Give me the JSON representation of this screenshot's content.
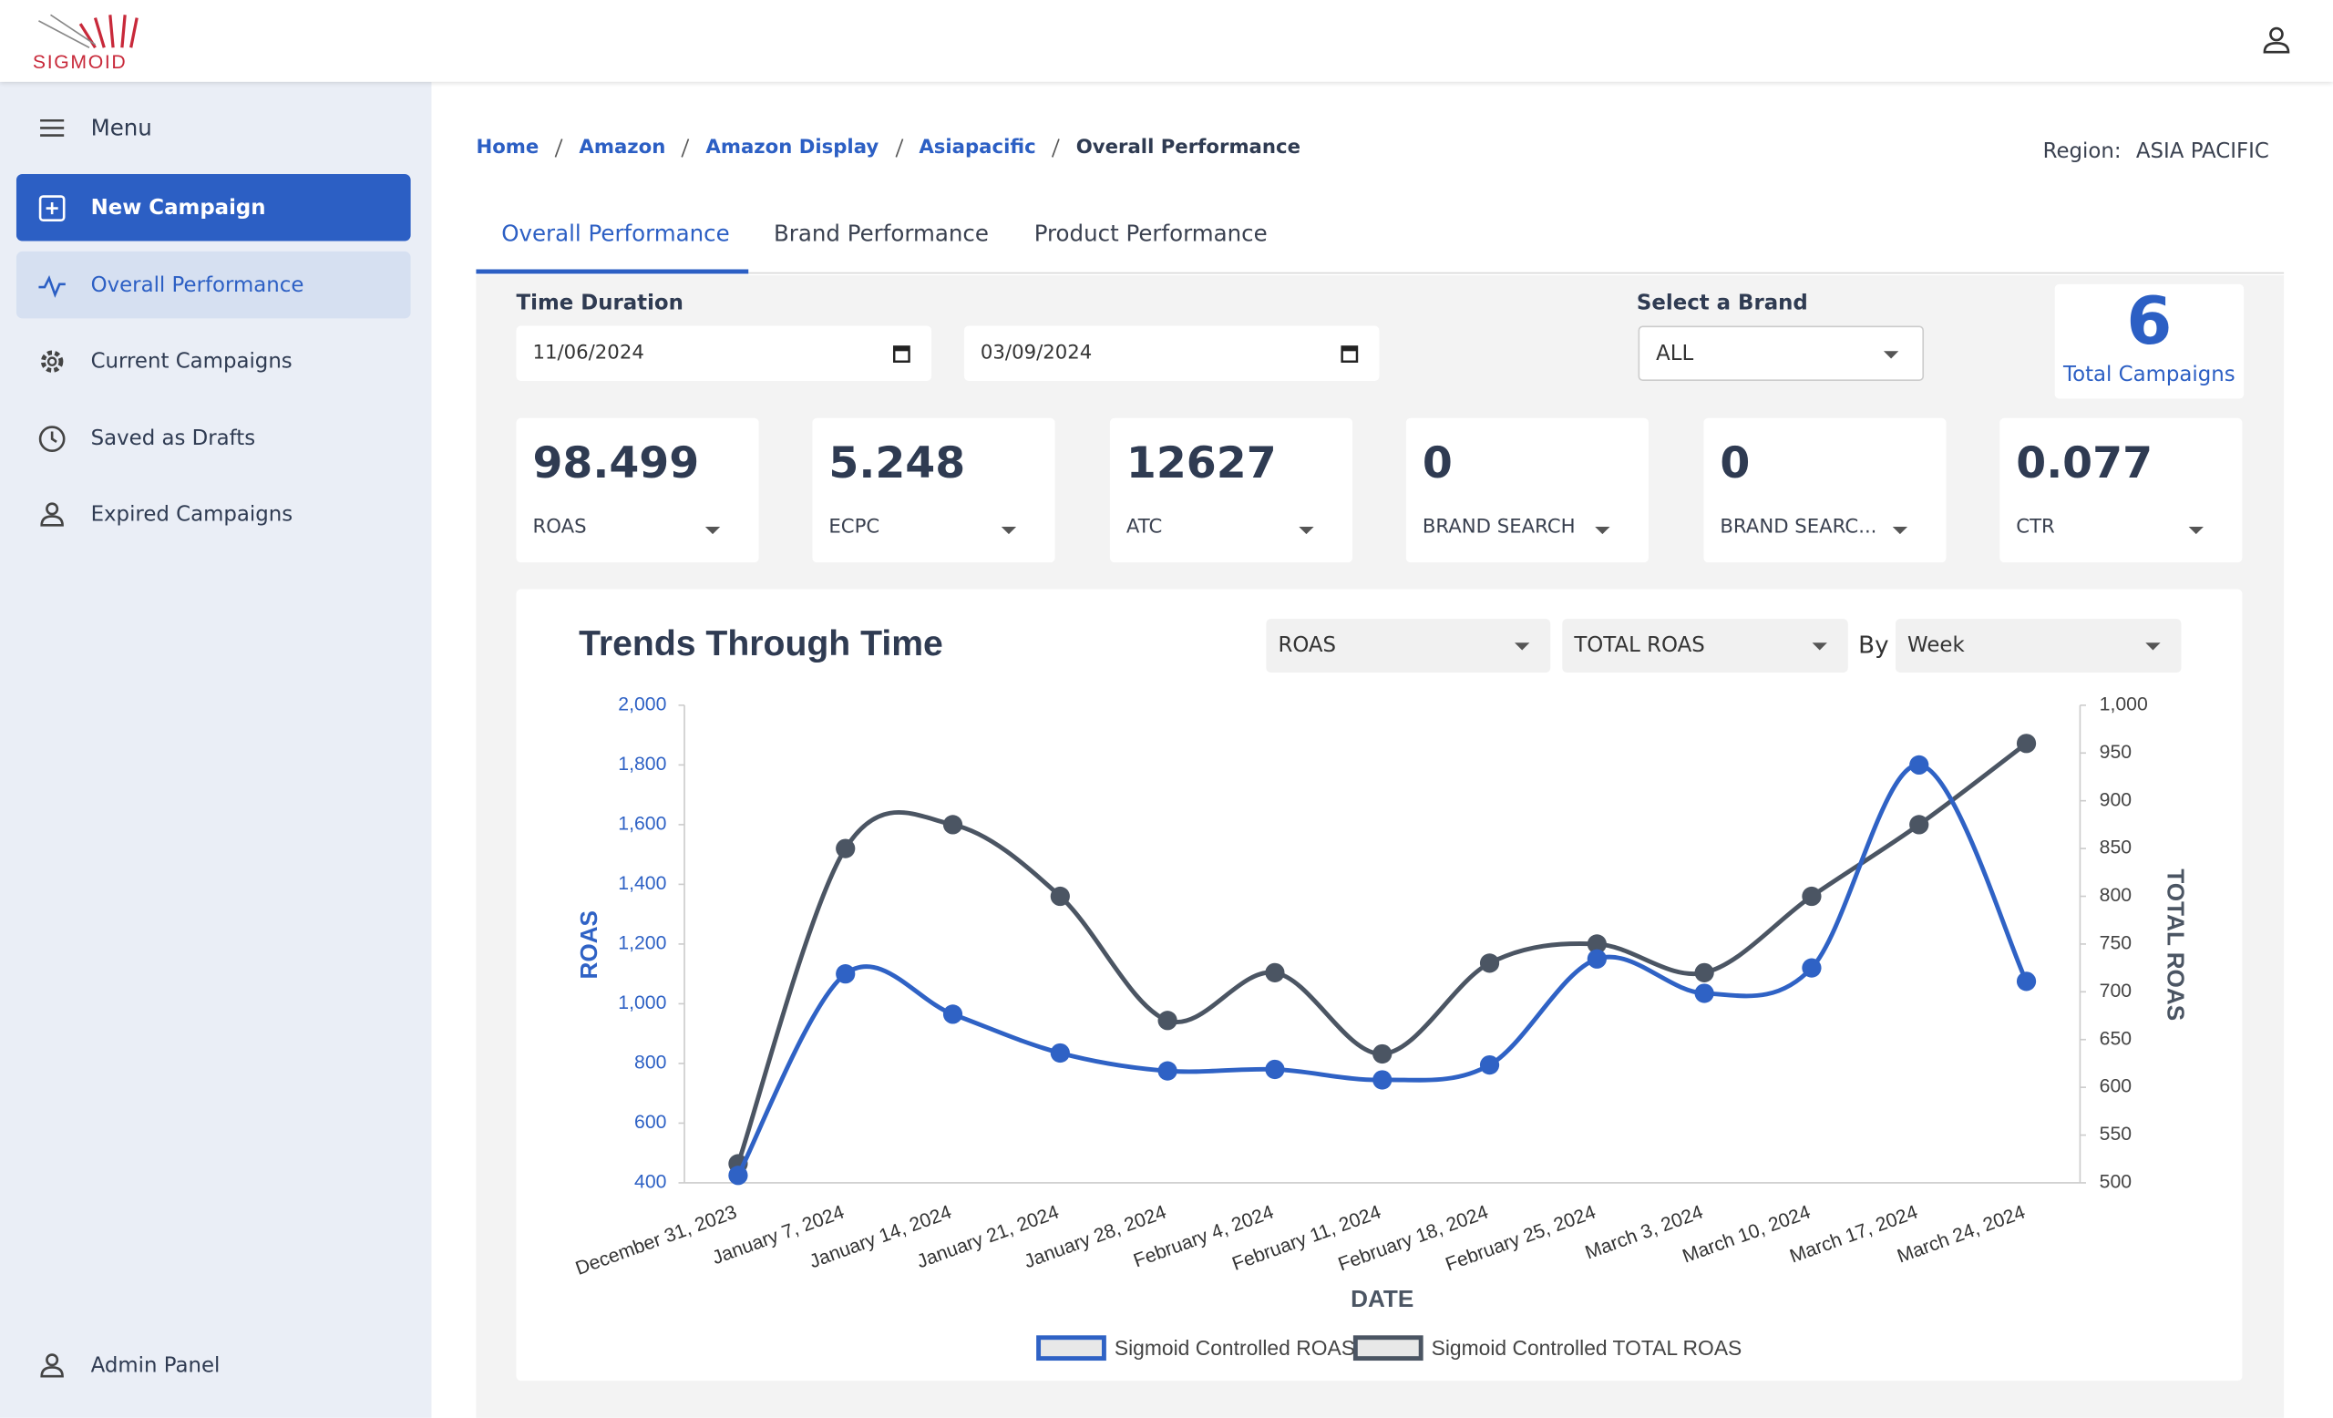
{
  "header": {
    "logo": "SIGMOID"
  },
  "sidebar": {
    "menu": "Menu",
    "items": [
      "New Campaign",
      "Overall Performance",
      "Current Campaigns",
      "Saved as Drafts",
      "Expired Campaigns"
    ],
    "footer": "Admin Panel"
  },
  "breadcrumb": [
    "Home",
    "Amazon",
    "Amazon Display",
    "Asiapacific",
    "Overall Performance"
  ],
  "region": {
    "label": "Region:",
    "value": "ASIA PACIFIC"
  },
  "tabs": [
    "Overall Performance",
    "Brand Performance",
    "Product Performance"
  ],
  "filters": {
    "time_label": "Time Duration",
    "start": "11/06/2024",
    "end": "03/09/2024",
    "brand_label": "Select a Brand",
    "brand": "ALL"
  },
  "total_campaigns": {
    "value": 6,
    "label": "Total Campaigns"
  },
  "kpis": [
    {
      "value": 98.499,
      "label": "ROAS"
    },
    {
      "value": 5.248,
      "label": "ECPC"
    },
    {
      "value": 12627,
      "label": "ATC"
    },
    {
      "value": 0,
      "label": "BRAND SEARCH"
    },
    {
      "value": 0,
      "label": "BRAND SEARC..."
    },
    {
      "value": 0.077,
      "label": "CTR"
    }
  ],
  "chart_controls": {
    "metric": "ROAS",
    "comparison": "TOTAL ROAS",
    "by": "By",
    "period": "Week"
  },
  "chart_data": {
    "type": "line",
    "title": "Trends Through Time",
    "x_label": "DATE",
    "y_label": "ROAS",
    "y2_label": "TOTAL ROAS",
    "categories": [
      "December 31, 2023",
      "January 7, 2024",
      "January 14, 2024",
      "January 21, 2024",
      "January 28, 2024",
      "February 4, 2024",
      "February 11, 2024",
      "February 18, 2024",
      "February 25, 2024",
      "March 3, 2024",
      "March 10, 2024",
      "March 17, 2024",
      "March 24, 2024"
    ],
    "series": [
      {
        "name": "Sigmoid Controlled ROAS",
        "color": "#2f62c5",
        "values": [
          425,
          1100,
          965,
          835,
          775,
          780,
          745,
          795,
          1150,
          1035,
          1120,
          1800,
          1075
        ]
      },
      {
        "name": "Sigmoid Controlled TOTAL ROAS",
        "color": "#4b5563",
        "axis": "y2",
        "values": [
          520,
          850,
          875,
          800,
          670,
          720,
          635,
          730,
          750,
          720,
          800,
          875,
          960
        ]
      }
    ],
    "ylim": [
      400,
      2000
    ],
    "yticks": [
      400,
      600,
      800,
      {
        "value": 1000,
        "label": "1,000"
      },
      {
        "value": 1200,
        "label": "1,200"
      },
      {
        "value": 1400,
        "label": "1,400"
      },
      {
        "value": 1600,
        "label": "1,600"
      },
      {
        "value": 1800,
        "label": "1,800"
      },
      {
        "value": 2000,
        "label": "2,000"
      }
    ],
    "y2lim": [
      500,
      1000
    ],
    "y2ticks": [
      500,
      550,
      600,
      650,
      700,
      750,
      800,
      850,
      900,
      950,
      {
        "value": 1000,
        "label": "1,000"
      }
    ],
    "grid": false
  }
}
